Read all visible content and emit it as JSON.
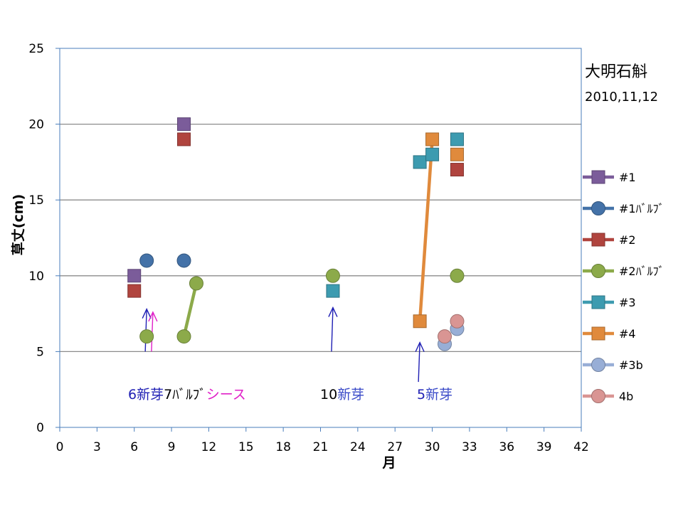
{
  "chart_data": {
    "type": "scatter",
    "title": "大明石斛",
    "subtitle": "2010,11,12",
    "xlabel": "月",
    "ylabel": "草丈(cm)",
    "xlim": [
      0,
      42
    ],
    "ylim": [
      0,
      25
    ],
    "xticks": [
      0,
      3,
      6,
      9,
      12,
      15,
      18,
      21,
      24,
      27,
      30,
      33,
      36,
      39,
      42
    ],
    "yticks": [
      0,
      5,
      10,
      15,
      20,
      25
    ],
    "grid": "horizontal",
    "legend_position": "right",
    "series": [
      {
        "name": "#1",
        "marker": "square",
        "color": "#7b5c9a",
        "points": [
          [
            6,
            10
          ],
          [
            10,
            20
          ]
        ],
        "connected": false
      },
      {
        "name": "#1ﾊﾞﾙﾌﾞ",
        "marker": "circle",
        "color": "#4472a8",
        "points": [
          [
            7,
            11
          ],
          [
            10,
            11
          ]
        ],
        "connected": false
      },
      {
        "name": "#2",
        "marker": "square",
        "color": "#b0443e",
        "points": [
          [
            6,
            9
          ],
          [
            10,
            19
          ],
          [
            32,
            17
          ]
        ],
        "connected": false
      },
      {
        "name": "#2ﾊﾞﾙﾌﾞ",
        "marker": "circle",
        "color": "#8caa4a",
        "points": [
          [
            7,
            6
          ],
          [
            10,
            6
          ],
          [
            11,
            9.5
          ],
          [
            22,
            10
          ],
          [
            32,
            10
          ]
        ],
        "segments": [
          [
            1,
            2
          ]
        ]
      },
      {
        "name": "#3",
        "marker": "square",
        "color": "#3d9bb0",
        "points": [
          [
            22,
            9
          ],
          [
            29,
            17.5
          ],
          [
            30,
            18
          ],
          [
            32,
            19
          ]
        ],
        "connected": false
      },
      {
        "name": "#4",
        "marker": "square",
        "color": "#e08a3c",
        "points": [
          [
            29,
            7
          ],
          [
            30,
            19
          ],
          [
            32,
            18
          ]
        ],
        "segments": [
          [
            0,
            1
          ]
        ]
      },
      {
        "name": "#3b",
        "marker": "circle",
        "color": "#98aed6",
        "points": [
          [
            31,
            5.5
          ],
          [
            32,
            6.5
          ]
        ],
        "connected": false
      },
      {
        "name": "4b",
        "marker": "circle",
        "color": "#d99593",
        "points": [
          [
            31,
            6
          ],
          [
            32,
            7
          ]
        ],
        "connected": false
      }
    ],
    "annotations": [
      {
        "parts": [
          {
            "text": "6",
            "color": "#1f1fb4"
          },
          {
            "text": "新芽",
            "color": "#1f1fb4"
          },
          {
            "text": "7",
            "color": "#000000"
          },
          {
            "text": "ﾊﾞﾙﾌﾞ",
            "color": "#000000"
          },
          {
            "text": "シース",
            "color": "#e020c8"
          }
        ]
      },
      {
        "parts": [
          {
            "text": "10",
            "color": "#000000"
          },
          {
            "text": "新芽",
            "color": "#3a4ac8"
          }
        ]
      },
      {
        "parts": [
          {
            "text": "5",
            "color": "#1f1fb4"
          },
          {
            "text": "新芽",
            "color": "#3a4ac8"
          }
        ]
      }
    ],
    "arrows": [
      {
        "x": 7,
        "y_from": 5,
        "y_to": 7.8,
        "color": "#1f1fb4"
      },
      {
        "x": 7.5,
        "y_from": 5,
        "y_to": 7.6,
        "color": "#e020c8"
      },
      {
        "x": 22,
        "y_from": 5,
        "y_to": 7.9,
        "color": "#1f1fb4"
      },
      {
        "x": 29,
        "y_from": 3,
        "y_to": 5.6,
        "color": "#1f1fb4"
      }
    ]
  }
}
